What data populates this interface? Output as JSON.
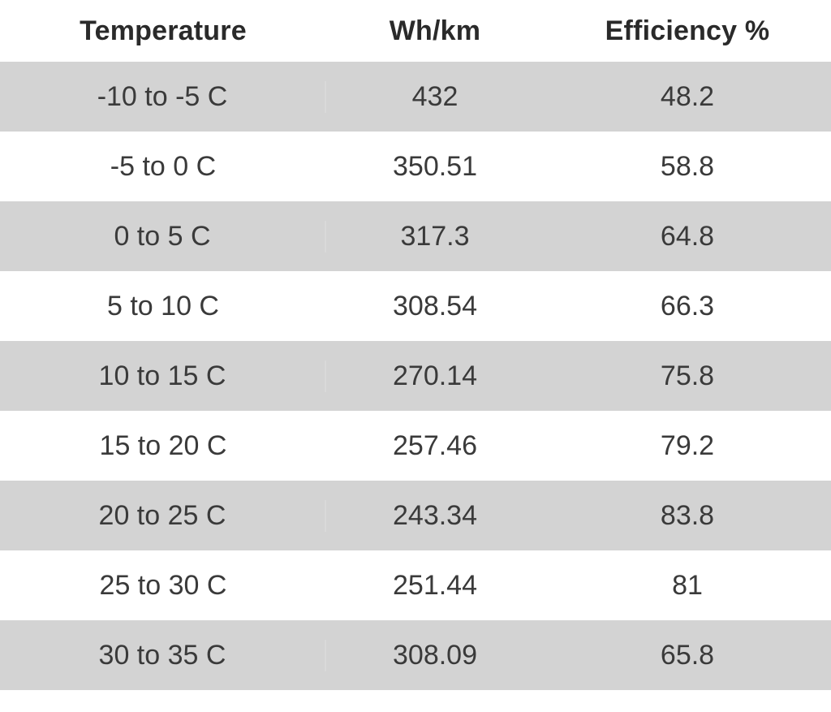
{
  "table": {
    "headers": [
      "Temperature",
      "Wh/km",
      "Efficiency %"
    ],
    "rows": [
      [
        "-10 to -5 C",
        "432",
        "48.2"
      ],
      [
        "-5 to 0 C",
        "350.51",
        "58.8"
      ],
      [
        "0 to 5 C",
        "317.3",
        "64.8"
      ],
      [
        "5 to 10 C",
        "308.54",
        "66.3"
      ],
      [
        "10 to 15 C",
        "270.14",
        "75.8"
      ],
      [
        "15 to 20 C",
        "257.46",
        "79.2"
      ],
      [
        "20 to 25 C",
        "243.34",
        "83.8"
      ],
      [
        "25 to 30 C",
        "251.44",
        "81"
      ],
      [
        "30 to 35 C",
        "308.09",
        "65.8"
      ]
    ]
  },
  "colors": {
    "shaded_row": "#d3d3d3",
    "plain_row": "#ffffff",
    "text": "#333333"
  }
}
